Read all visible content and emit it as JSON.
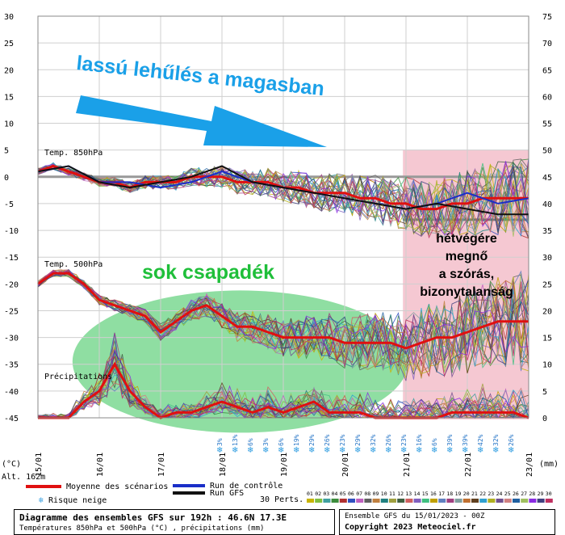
{
  "chart_data": {
    "type": "line",
    "title": "Diagramme des ensembles GFS sur 192h : 46.6N 17.3E",
    "subtitle": "Températures 850hPa et 500hPa (°C) , précipitations (mm)",
    "source": "Ensemble GFS du 15/01/2023 - 00Z",
    "copyright": "Copyright 2023 Meteociel.fr",
    "y_left_unit": "(°C)",
    "y_right_unit": "(mm)",
    "altitude_label": "Alt. 162m",
    "y_left_ticks": [
      "30",
      "25",
      "20",
      "15",
      "10",
      "5",
      "0",
      "-5",
      "-10",
      "-15",
      "-20",
      "-25",
      "-30",
      "-35",
      "-40",
      "-45"
    ],
    "y_right_ticks": [
      "75",
      "70",
      "65",
      "60",
      "55",
      "50",
      "45",
      "40",
      "35",
      "30",
      "25",
      "20",
      "15",
      "10",
      "5",
      "0"
    ],
    "ylim_left": [
      -45,
      30
    ],
    "ylim_right": [
      0,
      75
    ],
    "x_dates": [
      "15/01",
      "16/01",
      "17/01",
      "18/01",
      "19/01",
      "20/01",
      "21/01",
      "22/01",
      "23/01"
    ],
    "labels": {
      "t850": "Temp. 850hPa",
      "t500": "Temp. 500hPa",
      "precip": "Précipitations"
    },
    "snow_risk": [
      "3%",
      "13%",
      "6%",
      "3%",
      "6%",
      "19%",
      "29%",
      "26%",
      "23%",
      "29%",
      "32%",
      "26%",
      "23%",
      "16%",
      "6%",
      "39%",
      "39%",
      "42%",
      "32%",
      "26%"
    ],
    "series": [
      {
        "name": "Moyenne des scénarios (850hPa)",
        "color": "#e01010",
        "x": [
          0,
          0.25,
          0.5,
          0.75,
          1,
          1.25,
          1.5,
          1.75,
          2,
          2.25,
          2.5,
          2.75,
          3,
          3.25,
          3.5,
          3.75,
          4,
          4.25,
          4.5,
          4.75,
          5,
          5.25,
          5.5,
          5.75,
          6,
          6.25,
          6.5,
          6.75,
          7,
          7.25,
          7.5,
          7.75,
          8
        ],
        "values": [
          1,
          2,
          1,
          0,
          -1,
          -1,
          -2,
          -1,
          -1,
          -1,
          0,
          0,
          0,
          -1,
          -1,
          -1,
          -2,
          -2,
          -3,
          -3,
          -3,
          -4,
          -4,
          -5,
          -5,
          -6,
          -6,
          -5,
          -5,
          -4,
          -4,
          -4,
          -4
        ]
      },
      {
        "name": "Moyenne des scénarios (500hPa)",
        "color": "#e01010",
        "x": [
          0,
          0.25,
          0.5,
          0.75,
          1,
          1.25,
          1.5,
          1.75,
          2,
          2.25,
          2.5,
          2.75,
          3,
          3.25,
          3.5,
          3.75,
          4,
          4.25,
          4.5,
          4.75,
          5,
          5.25,
          5.5,
          5.75,
          6,
          6.25,
          6.5,
          6.75,
          7,
          7.25,
          7.5,
          7.75,
          8
        ],
        "values": [
          -20,
          -18,
          -18,
          -20,
          -23,
          -24,
          -25,
          -26,
          -29,
          -27,
          -25,
          -24,
          -26,
          -28,
          -28,
          -29,
          -30,
          -30,
          -30,
          -30,
          -31,
          -31,
          -31,
          -31,
          -32,
          -31,
          -30,
          -30,
          -29,
          -28,
          -27,
          -27,
          -27
        ]
      },
      {
        "name": "Moyenne des scénarios (précip)",
        "color": "#e01010",
        "x": [
          0,
          0.25,
          0.5,
          0.75,
          1,
          1.25,
          1.5,
          1.75,
          2,
          2.25,
          2.5,
          2.75,
          3,
          3.25,
          3.5,
          3.75,
          4,
          4.25,
          4.5,
          4.75,
          5,
          5.25,
          5.5,
          5.75,
          6,
          6.25,
          6.5,
          6.75,
          7,
          7.25,
          7.5,
          7.75,
          8
        ],
        "values": [
          0,
          0,
          0,
          3,
          5,
          10,
          5,
          2,
          0,
          1,
          1,
          2,
          3,
          2,
          1,
          2,
          1,
          2,
          3,
          1,
          1,
          1,
          0,
          0,
          0,
          0,
          0,
          1,
          1,
          1,
          1,
          1,
          0
        ]
      },
      {
        "name": "Run de contrôle",
        "color": "#1a2ec8",
        "x": [
          0,
          0.5,
          1,
          1.5,
          2,
          2.5,
          3,
          3.5,
          4,
          4.5,
          5,
          5.5,
          6,
          6.5,
          7,
          7.5,
          8
        ],
        "values": [
          1,
          2,
          -1,
          -1,
          -2,
          -1,
          1,
          -1,
          -2,
          -3,
          -4,
          -5,
          -6,
          -5,
          -3,
          -5,
          -4
        ]
      },
      {
        "name": "Run GFS",
        "color": "#111111",
        "x": [
          0,
          0.5,
          1,
          1.5,
          2,
          2.5,
          3,
          3.5,
          4,
          4.5,
          5,
          5.5,
          6,
          6.5,
          7,
          7.5,
          8
        ],
        "values": [
          1,
          2,
          -1,
          -2,
          -1,
          0,
          2,
          -1,
          -2,
          -3,
          -4,
          -5,
          -6,
          -5,
          -6,
          -7,
          -7
        ]
      }
    ],
    "perturbations_label": "30 Perts.",
    "perturbation_numbers": [
      "01",
      "02",
      "03",
      "04",
      "05",
      "06",
      "07",
      "08",
      "09",
      "10",
      "11",
      "12",
      "13",
      "14",
      "15",
      "16",
      "17",
      "18",
      "19",
      "20",
      "21",
      "22",
      "23",
      "24",
      "25",
      "26",
      "27",
      "28",
      "29",
      "30"
    ],
    "perturbation_colors": [
      "#c8b400",
      "#7fbf3f",
      "#40a0a0",
      "#3c8c3c",
      "#b03030",
      "#3050c0",
      "#c060c0",
      "#606060",
      "#c08040",
      "#208080",
      "#a0a040",
      "#406040",
      "#d06060",
      "#8060c0",
      "#40c080",
      "#c0a000",
      "#6080c0",
      "#a04080",
      "#80a0a0",
      "#c07030",
      "#604020",
      "#30a0d0",
      "#b0b020",
      "#705090",
      "#d08080",
      "#2060a0",
      "#a0c060",
      "#8a2be2",
      "#404080",
      "#c03060"
    ]
  },
  "legend": {
    "mean": "Moyenne des scénarios",
    "control": "Run de contrôle",
    "gfs": "Run GFS",
    "snow": "Risque neige",
    "mean_color": "#e01010",
    "control_color": "#1a2ec8",
    "gfs_color": "#111111"
  },
  "annotations": {
    "cooling": "lassú lehűlés a magasban",
    "precip": "sok csapadék",
    "spread_line1": "hétvégére",
    "spread_line2": "megnő",
    "spread_line3": "a szórás,",
    "spread_line4": "bizonytalanság",
    "arrow_color": "#1aa0e8",
    "precip_color": "#1fbf3a",
    "spread_bg": "#f5c8d2"
  }
}
